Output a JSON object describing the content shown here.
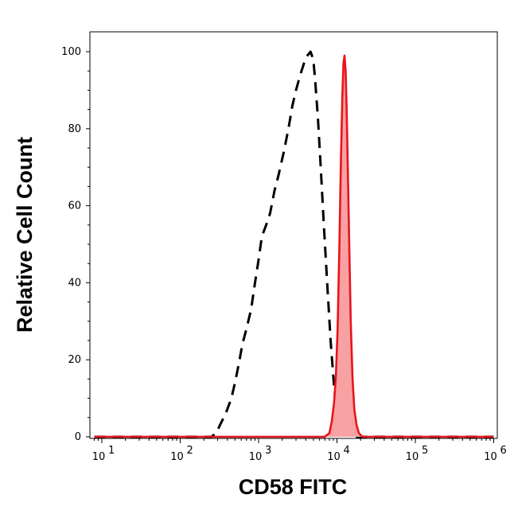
{
  "chart_data": {
    "type": "area",
    "xlabel": "CD58 FITC",
    "ylabel": "Relative Cell Count",
    "xscale": "log",
    "xlim": [
      10,
      1000000
    ],
    "ylim": [
      0,
      100
    ],
    "x_ticks": [
      {
        "base": "10",
        "exp": "1",
        "value": 10
      },
      {
        "base": "10",
        "exp": "2",
        "value": 100
      },
      {
        "base": "10",
        "exp": "3",
        "value": 1000
      },
      {
        "base": "10",
        "exp": "4",
        "value": 10000
      },
      {
        "base": "10",
        "exp": "5",
        "value": 100000
      },
      {
        "base": "10",
        "exp": "6",
        "value": 1000000
      }
    ],
    "y_ticks": [
      "0",
      "20",
      "40",
      "60",
      "80",
      "100"
    ],
    "grid": false,
    "series": [
      {
        "style": "dashed",
        "color": "#000000",
        "fill": "none",
        "x": [
          8,
          100,
          250,
          290,
          320,
          380,
          450,
          500,
          560,
          620,
          700,
          800,
          900,
          1000,
          1100,
          1250,
          1400,
          1600,
          1800,
          2100,
          2400,
          2700,
          3000,
          3400,
          3800,
          4200,
          4600,
          5000,
          5300,
          5700,
          6200,
          6800,
          7500,
          8300,
          9200,
          10200,
          11200,
          12500,
          15000,
          30000,
          1000000
        ],
        "y": [
          0,
          0,
          0,
          1,
          3,
          6,
          10,
          14,
          19,
          24,
          28,
          33,
          40,
          46,
          52,
          55,
          58,
          64,
          68,
          74,
          80,
          86,
          90,
          94,
          97,
          99,
          100,
          98,
          92,
          83,
          70,
          55,
          40,
          25,
          13,
          5,
          2,
          1,
          0,
          0,
          0
        ]
      },
      {
        "style": "solid",
        "color": "#e8141c",
        "fill": "#f7a1a3",
        "x": [
          8,
          7000,
          8000,
          8600,
          9200,
          9700,
          10200,
          10700,
          11200,
          11700,
          12100,
          12500,
          12900,
          13300,
          13800,
          14400,
          15000,
          15800,
          16700,
          17800,
          19000,
          21000,
          1000000
        ],
        "y": [
          0,
          0,
          1,
          4,
          9,
          16,
          28,
          48,
          70,
          88,
          97,
          99,
          95,
          85,
          68,
          48,
          30,
          15,
          7,
          3,
          1,
          0,
          0
        ]
      }
    ]
  }
}
